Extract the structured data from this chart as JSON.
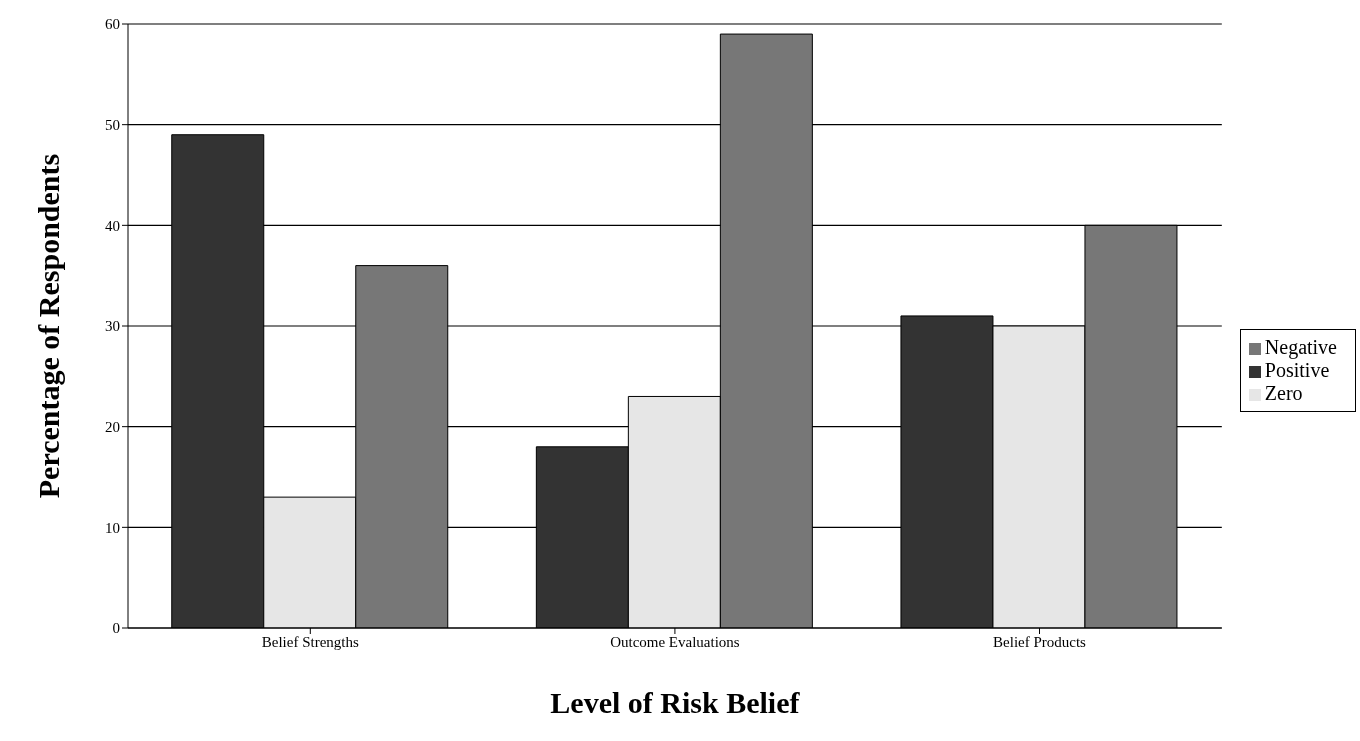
{
  "chart_data": {
    "type": "bar",
    "xlabel": "Level of Risk Belief",
    "ylabel": "Percentage of Respondents",
    "categories": [
      "Belief Strengths",
      "Outcome Evaluations",
      "Belief Products"
    ],
    "series": [
      {
        "name": "Positive",
        "color": "#333333",
        "values": [
          49,
          18,
          31
        ]
      },
      {
        "name": "Zero",
        "color": "#e6e6e6",
        "values": [
          13,
          23,
          30
        ]
      },
      {
        "name": "Negative",
        "color": "#777777",
        "values": [
          36,
          59,
          40
        ]
      }
    ],
    "ylim": [
      0,
      60
    ],
    "yticks": [
      0,
      10,
      20,
      30,
      40,
      50,
      60
    ],
    "grid": "y",
    "legend": "right"
  }
}
